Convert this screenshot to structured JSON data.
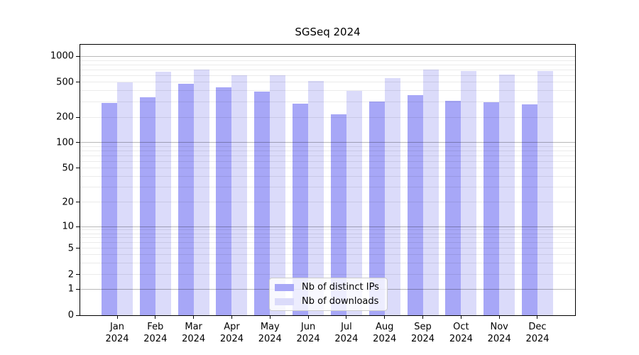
{
  "title": "SGSeq 2024",
  "chart_data": {
    "type": "bar",
    "title": "SGSeq 2024",
    "xlabel": "",
    "ylabel": "",
    "yscale": "log-like (pseudo-log with 0 baseline)",
    "ylim": [
      0,
      1219
    ],
    "grid": "horizontal",
    "legend_position": "lower center, inside plot",
    "categories": [
      {
        "month": "Jan",
        "year": "2024"
      },
      {
        "month": "Feb",
        "year": "2024"
      },
      {
        "month": "Mar",
        "year": "2024"
      },
      {
        "month": "Apr",
        "year": "2024"
      },
      {
        "month": "May",
        "year": "2024"
      },
      {
        "month": "Jun",
        "year": "2024"
      },
      {
        "month": "Jul",
        "year": "2024"
      },
      {
        "month": "Aug",
        "year": "2024"
      },
      {
        "month": "Sep",
        "year": "2024"
      },
      {
        "month": "Oct",
        "year": "2024"
      },
      {
        "month": "Nov",
        "year": "2024"
      },
      {
        "month": "Dec",
        "year": "2024"
      }
    ],
    "series": [
      {
        "name": "Nb of distinct IPs",
        "color": "#a7a7f7",
        "values": [
          290,
          340,
          480,
          435,
          390,
          285,
          215,
          300,
          360,
          310,
          295,
          280
        ]
      },
      {
        "name": "Nb of downloads",
        "color": "#dbdbfa",
        "values": [
          500,
          660,
          700,
          600,
          600,
          520,
          400,
          560,
          700,
          680,
          620,
          670
        ]
      }
    ],
    "yticks": [
      0,
      1,
      2,
      5,
      10,
      20,
      50,
      100,
      200,
      500,
      1000
    ],
    "grid_major_values": [
      1,
      10,
      100,
      1000
    ],
    "grid_minor_values": [
      2,
      3,
      4,
      5,
      6,
      7,
      8,
      9,
      20,
      30,
      40,
      50,
      60,
      70,
      80,
      90,
      200,
      300,
      400,
      500,
      600,
      700,
      800,
      900
    ]
  },
  "legend": {
    "items": [
      {
        "label": "Nb of distinct IPs",
        "color": "#a7a7f7"
      },
      {
        "label": "Nb of downloads",
        "color": "#dbdbfa"
      }
    ]
  }
}
